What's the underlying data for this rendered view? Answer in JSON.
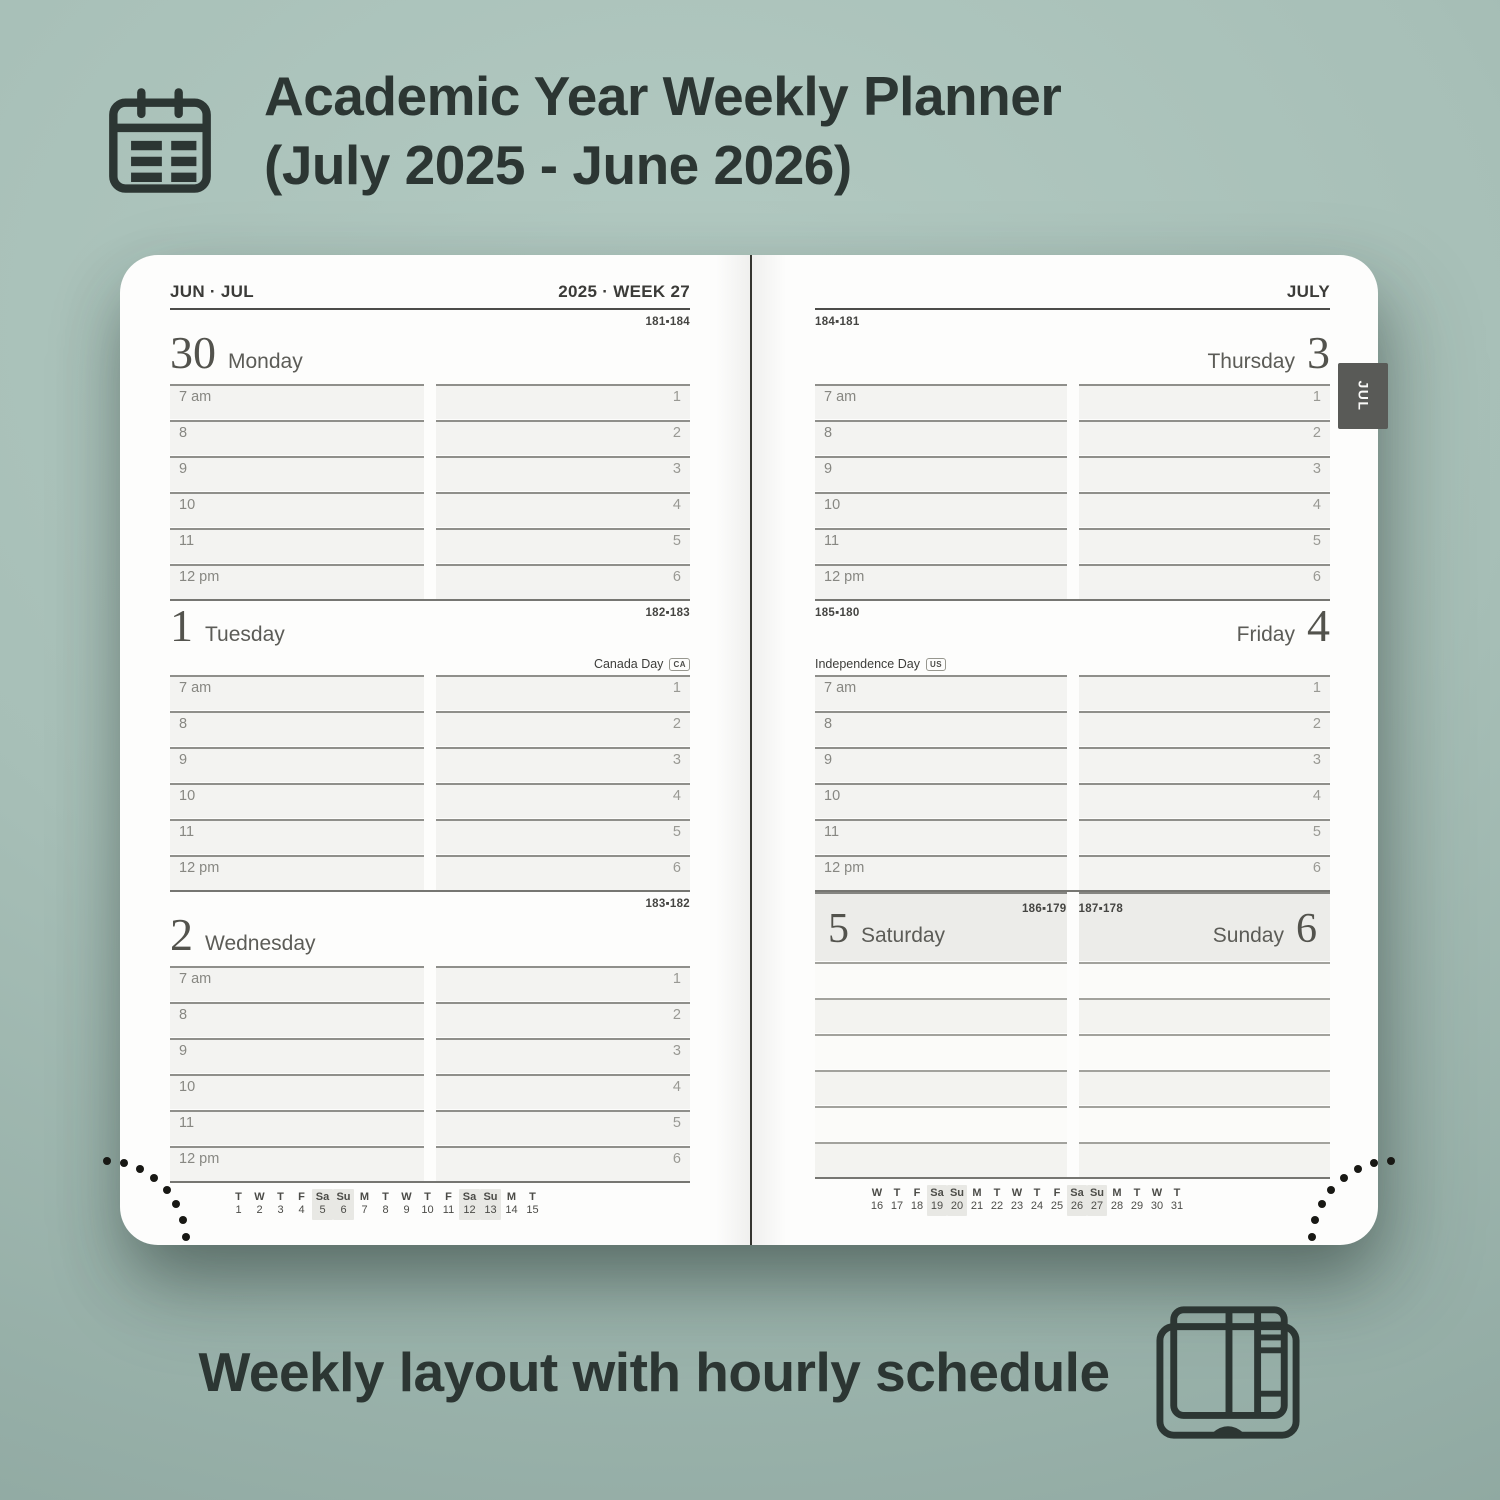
{
  "title": {
    "line1": "Academic Year Weekly Planner",
    "line2": "(July 2025 - June 2026)"
  },
  "caption": "Weekly layout with hourly schedule",
  "colors": {
    "background": "#a7bfb7",
    "ink": "#2c3633",
    "tab_background": "#595a57",
    "row_fill": "#f3f3f1",
    "weekend_fill": "#ecece9",
    "minical_highlight": "#e8e8e4"
  },
  "planner": {
    "time_labels": [
      "7 am",
      "8",
      "9",
      "10",
      "11",
      "12 pm"
    ],
    "slot_numbers": [
      "1",
      "2",
      "3",
      "4",
      "5",
      "6"
    ],
    "left_page": {
      "month_range": "JUN · JUL",
      "year_week": "2025 · WEEK 27",
      "days": [
        {
          "date": "30",
          "name": "Monday",
          "day_of_year": "181▪184"
        },
        {
          "date": "1",
          "name": "Tuesday",
          "day_of_year": "182▪183",
          "holiday": "Canada Day",
          "holiday_badge": "CA"
        },
        {
          "date": "2",
          "name": "Wednesday",
          "day_of_year": "183▪182"
        }
      ],
      "mini_calendar": {
        "letters": [
          "T",
          "W",
          "T",
          "F",
          "Sa",
          "Su",
          "M",
          "T",
          "W",
          "T",
          "F",
          "Sa",
          "Su",
          "M",
          "T"
        ],
        "dates": [
          "1",
          "2",
          "3",
          "4",
          "5",
          "6",
          "7",
          "8",
          "9",
          "10",
          "11",
          "12",
          "13",
          "14",
          "15"
        ],
        "weekend_columns": [
          4,
          5,
          11,
          12
        ]
      }
    },
    "right_page": {
      "month_label": "JULY",
      "tab_label": "JUL",
      "days": [
        {
          "date": "3",
          "name": "Thursday",
          "day_of_year": "184▪181"
        },
        {
          "date": "4",
          "name": "Friday",
          "day_of_year": "185▪180",
          "holiday": "Independence Day",
          "holiday_badge": "US"
        }
      ],
      "weekend_days": [
        {
          "date": "5",
          "name": "Saturday",
          "day_of_year": "186▪179"
        },
        {
          "date": "6",
          "name": "Sunday",
          "day_of_year": "187▪178"
        }
      ],
      "mini_calendar": {
        "letters": [
          "W",
          "T",
          "F",
          "Sa",
          "Su",
          "M",
          "T",
          "W",
          "T",
          "F",
          "Sa",
          "Su",
          "M",
          "T",
          "W",
          "T"
        ],
        "dates": [
          "16",
          "17",
          "18",
          "19",
          "20",
          "21",
          "22",
          "23",
          "24",
          "25",
          "26",
          "27",
          "28",
          "29",
          "30",
          "31"
        ],
        "weekend_columns": [
          3,
          4,
          10,
          11
        ]
      }
    }
  }
}
